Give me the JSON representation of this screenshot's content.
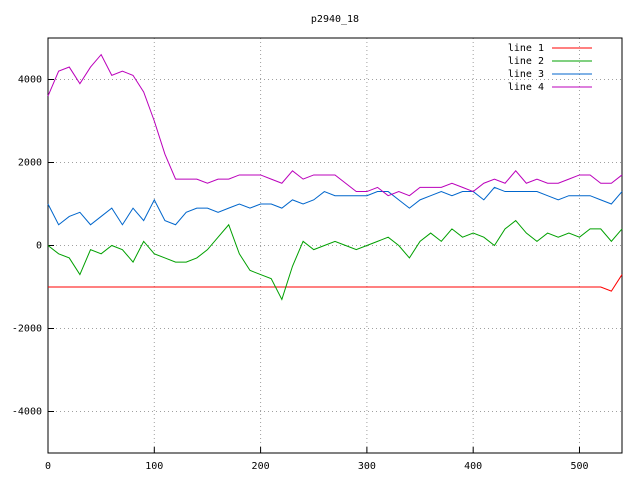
{
  "chart_data": {
    "type": "line",
    "title": "p2940_18",
    "x": [
      0,
      10,
      20,
      30,
      40,
      50,
      60,
      70,
      80,
      90,
      100,
      110,
      120,
      130,
      140,
      150,
      160,
      170,
      180,
      190,
      200,
      210,
      220,
      230,
      240,
      250,
      260,
      270,
      280,
      290,
      300,
      310,
      320,
      330,
      340,
      350,
      360,
      370,
      380,
      390,
      400,
      410,
      420,
      430,
      440,
      450,
      460,
      470,
      480,
      490,
      500,
      510,
      520,
      530,
      540
    ],
    "series": [
      {
        "name": "line 1",
        "color": "#ff0000",
        "values": [
          -1000,
          -1000,
          -1000,
          -1000,
          -1000,
          -1000,
          -1000,
          -1000,
          -1000,
          -1000,
          -1000,
          -1000,
          -1000,
          -1000,
          -1000,
          -1000,
          -1000,
          -1000,
          -1000,
          -1000,
          -1000,
          -1000,
          -1000,
          -1000,
          -1000,
          -1000,
          -1000,
          -1000,
          -1000,
          -1000,
          -1000,
          -1000,
          -1000,
          -1000,
          -1000,
          -1000,
          -1000,
          -1000,
          -1000,
          -1000,
          -1000,
          -1000,
          -1000,
          -1000,
          -1000,
          -1000,
          -1000,
          -1000,
          -1000,
          -1000,
          -1000,
          -1000,
          -1000,
          -1100,
          -700
        ]
      },
      {
        "name": "line 2",
        "color": "#00a000",
        "values": [
          0,
          -200,
          -300,
          -700,
          -100,
          -200,
          0,
          -100,
          -400,
          100,
          -200,
          -300,
          -400,
          -400,
          -300,
          -100,
          200,
          500,
          -200,
          -600,
          -700,
          -800,
          -1300,
          -500,
          100,
          -100,
          0,
          100,
          0,
          -100,
          0,
          100,
          200,
          0,
          -300,
          100,
          300,
          100,
          400,
          200,
          300,
          200,
          0,
          400,
          600,
          300,
          100,
          300,
          200,
          300,
          200,
          400,
          400,
          100,
          400
        ]
      },
      {
        "name": "line 3",
        "color": "#0066cc",
        "values": [
          1000,
          500,
          700,
          800,
          500,
          700,
          900,
          500,
          900,
          600,
          1100,
          600,
          500,
          800,
          900,
          900,
          800,
          900,
          1000,
          900,
          1000,
          1000,
          900,
          1100,
          1000,
          1100,
          1300,
          1200,
          1200,
          1200,
          1200,
          1300,
          1300,
          1100,
          900,
          1100,
          1200,
          1300,
          1200,
          1300,
          1300,
          1100,
          1400,
          1300,
          1300,
          1300,
          1300,
          1200,
          1100,
          1200,
          1200,
          1200,
          1100,
          1000,
          1300
        ]
      },
      {
        "name": "line 4",
        "color": "#bb00bb",
        "values": [
          3600,
          4200,
          4300,
          3900,
          4300,
          4600,
          4100,
          4200,
          4100,
          3700,
          3000,
          2200,
          1600,
          1600,
          1600,
          1500,
          1600,
          1600,
          1700,
          1700,
          1700,
          1600,
          1500,
          1800,
          1600,
          1700,
          1700,
          1700,
          1500,
          1300,
          1300,
          1400,
          1200,
          1300,
          1200,
          1400,
          1400,
          1400,
          1500,
          1400,
          1300,
          1500,
          1600,
          1500,
          1800,
          1500,
          1600,
          1500,
          1500,
          1600,
          1700,
          1700,
          1500,
          1500,
          1700
        ]
      }
    ],
    "xlim": [
      0,
      540
    ],
    "xticks": [
      0,
      100,
      200,
      300,
      400,
      500
    ],
    "ylim": [
      -5000,
      5000
    ],
    "yticks": [
      -4000,
      -2000,
      0,
      2000,
      4000
    ],
    "grid": true,
    "legend": "top-right"
  }
}
